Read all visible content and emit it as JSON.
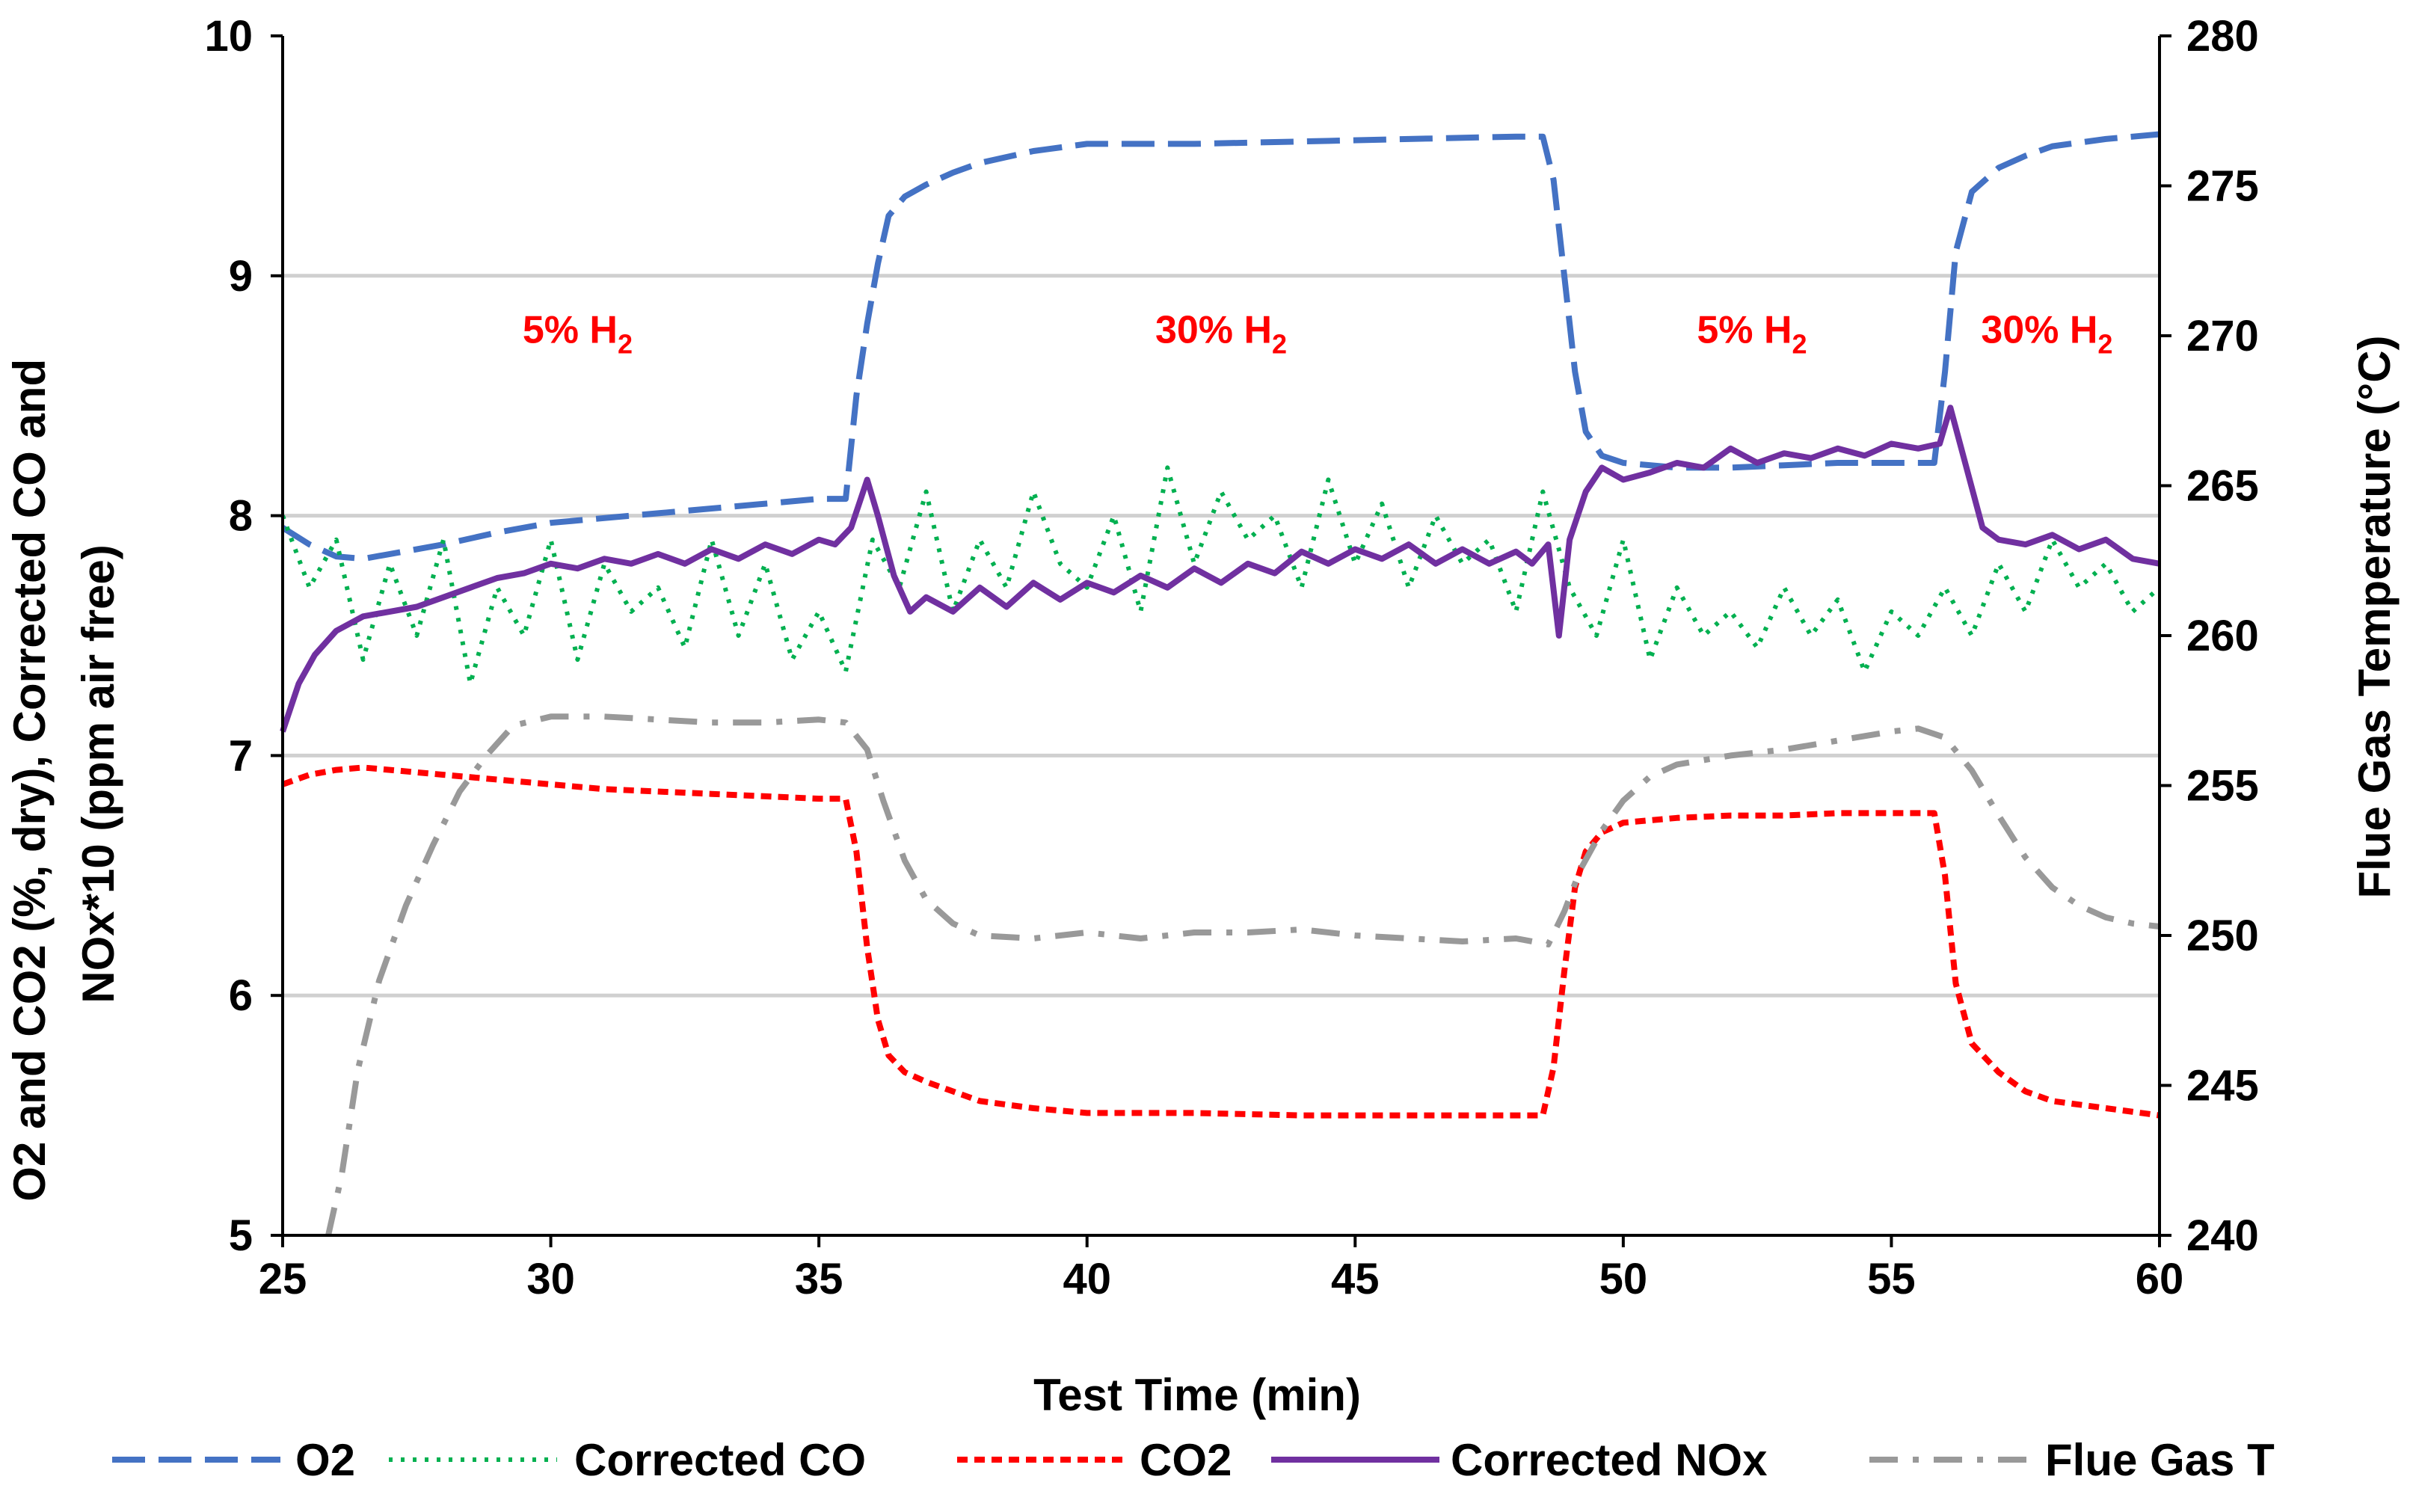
{
  "chart_data": {
    "type": "line",
    "xlabel": "Test Time (min)",
    "ylabel_lines": [
      "O2 and CO2 (%, dry), Corrected CO and",
      "NOx*10 (ppm air free)"
    ],
    "y2label": "Flue Gas Temperature (°C)",
    "xlim": [
      25,
      60
    ],
    "ylim": [
      5,
      10
    ],
    "y2lim": [
      240,
      280
    ],
    "x_ticks": [
      25,
      30,
      35,
      40,
      45,
      50,
      55,
      60
    ],
    "y_ticks": [
      5,
      6,
      7,
      8,
      9,
      10
    ],
    "y2_ticks": [
      240,
      245,
      250,
      255,
      260,
      265,
      270,
      275,
      280
    ],
    "grid": "horizontal",
    "legend_position": "bottom",
    "annotations": [
      {
        "text": "5% H",
        "sub": "2",
        "x": 30.5,
        "y": 8.72
      },
      {
        "text": "30% H",
        "sub": "2",
        "x": 42.5,
        "y": 8.72
      },
      {
        "text": "5% H",
        "sub": "2",
        "x": 52.4,
        "y": 8.72
      },
      {
        "text": "30% H",
        "sub": "2",
        "x": 57.9,
        "y": 8.72
      }
    ],
    "series": [
      {
        "name": "O2",
        "axis": "left",
        "color": "#4472c4",
        "dash": "dash",
        "x": [
          25,
          25.5,
          26,
          26.5,
          27,
          28,
          29,
          30,
          31,
          32,
          33,
          34,
          35,
          35.5,
          35.7,
          35.9,
          36.1,
          36.3,
          36.6,
          37,
          37.5,
          38,
          39,
          40,
          42,
          44,
          46,
          48,
          48.5,
          48.7,
          48.9,
          49.1,
          49.3,
          49.6,
          50,
          51,
          52,
          53,
          54,
          55,
          55.8,
          56,
          56.2,
          56.5,
          57,
          57.5,
          58,
          59,
          60
        ],
        "y": [
          7.95,
          7.88,
          7.83,
          7.82,
          7.84,
          7.88,
          7.93,
          7.97,
          7.99,
          8.01,
          8.03,
          8.05,
          8.07,
          8.07,
          8.5,
          8.8,
          9.05,
          9.25,
          9.33,
          9.38,
          9.43,
          9.47,
          9.52,
          9.55,
          9.55,
          9.56,
          9.57,
          9.58,
          9.58,
          9.4,
          9.0,
          8.6,
          8.35,
          8.25,
          8.22,
          8.2,
          8.2,
          8.21,
          8.22,
          8.22,
          8.22,
          8.6,
          9.1,
          9.35,
          9.45,
          9.5,
          9.54,
          9.57,
          9.59
        ]
      },
      {
        "name": "Corrected CO",
        "axis": "left",
        "color": "#00b050",
        "dash": "dot",
        "x": [
          25,
          25.5,
          26,
          26.5,
          27,
          27.5,
          28,
          28.5,
          29,
          29.5,
          30,
          30.5,
          31,
          31.5,
          32,
          32.5,
          33,
          33.5,
          34,
          34.5,
          35,
          35.5,
          36,
          36.5,
          37,
          37.5,
          38,
          38.5,
          39,
          39.5,
          40,
          40.5,
          41,
          41.5,
          42,
          42.5,
          43,
          43.5,
          44,
          44.5,
          45,
          45.5,
          46,
          46.5,
          47,
          47.5,
          48,
          48.5,
          49,
          49.5,
          50,
          50.5,
          51,
          51.5,
          52,
          52.5,
          53,
          53.5,
          54,
          54.5,
          55,
          55.5,
          56,
          56.5,
          57,
          57.5,
          58,
          58.5,
          59,
          59.5,
          60
        ],
        "y": [
          8.0,
          7.7,
          7.9,
          7.4,
          7.8,
          7.5,
          7.9,
          7.3,
          7.7,
          7.5,
          7.9,
          7.4,
          7.8,
          7.6,
          7.7,
          7.45,
          7.9,
          7.5,
          7.8,
          7.4,
          7.6,
          7.35,
          7.9,
          7.7,
          8.1,
          7.6,
          7.9,
          7.7,
          8.1,
          7.8,
          7.7,
          8.0,
          7.6,
          8.2,
          7.8,
          8.1,
          7.9,
          8.0,
          7.7,
          8.15,
          7.8,
          8.05,
          7.7,
          8.0,
          7.8,
          7.9,
          7.6,
          8.1,
          7.7,
          7.5,
          7.9,
          7.4,
          7.7,
          7.5,
          7.6,
          7.45,
          7.7,
          7.5,
          7.65,
          7.35,
          7.6,
          7.5,
          7.7,
          7.5,
          7.8,
          7.6,
          7.9,
          7.7,
          7.8,
          7.6,
          7.7
        ]
      },
      {
        "name": "CO2",
        "axis": "left",
        "color": "#ff0000",
        "dash": "shortdash",
        "x": [
          25,
          25.5,
          26,
          26.5,
          27,
          28,
          29,
          30,
          31,
          32,
          33,
          34,
          35,
          35.5,
          35.7,
          35.9,
          36.1,
          36.3,
          36.6,
          37,
          37.5,
          38,
          39,
          40,
          42,
          44,
          46,
          48,
          48.5,
          48.7,
          48.9,
          49.1,
          49.3,
          49.6,
          50,
          51,
          52,
          53,
          54,
          55,
          55.8,
          56,
          56.2,
          56.5,
          57,
          57.5,
          58,
          59,
          60
        ],
        "y": [
          6.88,
          6.92,
          6.94,
          6.95,
          6.94,
          6.92,
          6.9,
          6.88,
          6.86,
          6.85,
          6.84,
          6.83,
          6.82,
          6.82,
          6.6,
          6.2,
          5.9,
          5.75,
          5.68,
          5.64,
          5.6,
          5.56,
          5.53,
          5.51,
          5.51,
          5.5,
          5.5,
          5.5,
          5.5,
          5.7,
          6.1,
          6.45,
          6.6,
          6.68,
          6.72,
          6.74,
          6.75,
          6.75,
          6.76,
          6.76,
          6.76,
          6.5,
          6.05,
          5.8,
          5.68,
          5.6,
          5.56,
          5.53,
          5.5
        ]
      },
      {
        "name": "Corrected NOx",
        "axis": "left",
        "color": "#7030a0",
        "dash": "solid",
        "x": [
          25,
          25.3,
          25.6,
          26,
          26.5,
          27,
          27.5,
          28,
          28.5,
          29,
          29.5,
          30,
          30.5,
          31,
          31.5,
          32,
          32.5,
          33,
          33.5,
          34,
          34.5,
          35,
          35.3,
          35.6,
          35.9,
          36.1,
          36.4,
          36.7,
          37,
          37.5,
          38,
          38.5,
          39,
          39.5,
          40,
          40.5,
          41,
          41.5,
          42,
          42.5,
          43,
          43.5,
          44,
          44.5,
          45,
          45.5,
          46,
          46.5,
          47,
          47.5,
          48,
          48.3,
          48.6,
          48.8,
          49,
          49.3,
          49.6,
          50,
          50.5,
          51,
          51.5,
          52,
          52.5,
          53,
          53.5,
          54,
          54.5,
          55,
          55.5,
          55.9,
          56.1,
          56.4,
          56.7,
          57,
          57.5,
          58,
          58.5,
          59,
          59.5,
          60
        ],
        "y": [
          7.1,
          7.3,
          7.42,
          7.52,
          7.58,
          7.6,
          7.62,
          7.66,
          7.7,
          7.74,
          7.76,
          7.8,
          7.78,
          7.82,
          7.8,
          7.84,
          7.8,
          7.86,
          7.82,
          7.88,
          7.84,
          7.9,
          7.88,
          7.95,
          8.15,
          8.0,
          7.75,
          7.6,
          7.66,
          7.6,
          7.7,
          7.62,
          7.72,
          7.65,
          7.72,
          7.68,
          7.75,
          7.7,
          7.78,
          7.72,
          7.8,
          7.76,
          7.85,
          7.8,
          7.86,
          7.82,
          7.88,
          7.8,
          7.86,
          7.8,
          7.85,
          7.8,
          7.88,
          7.5,
          7.9,
          8.1,
          8.2,
          8.15,
          8.18,
          8.22,
          8.2,
          8.28,
          8.22,
          8.26,
          8.24,
          8.28,
          8.25,
          8.3,
          8.28,
          8.3,
          8.45,
          8.2,
          7.95,
          7.9,
          7.88,
          7.92,
          7.86,
          7.9,
          7.82,
          7.8
        ]
      },
      {
        "name": "Flue Gas T",
        "axis": "right",
        "color": "#999999",
        "dash": "dashdot",
        "x": [
          25.85,
          26.1,
          26.4,
          26.8,
          27.3,
          27.8,
          28.3,
          28.8,
          29.3,
          30,
          31,
          32,
          33,
          34,
          35,
          35.5,
          35.9,
          36.2,
          36.6,
          37,
          37.5,
          38,
          39,
          40,
          41,
          42,
          43,
          44,
          45,
          46,
          47,
          48,
          48.6,
          48.9,
          49.2,
          49.6,
          50,
          50.5,
          51,
          52,
          53,
          54,
          55,
          55.5,
          56,
          56.5,
          57,
          57.5,
          58,
          58.5,
          59,
          59.5,
          60
        ],
        "y": [
          240,
          242,
          245.5,
          248.5,
          251,
          253,
          254.8,
          256,
          257,
          257.3,
          257.3,
          257.2,
          257.1,
          257.1,
          257.2,
          257.1,
          256.2,
          254.5,
          252.5,
          251.2,
          250.4,
          250,
          249.9,
          250.1,
          249.9,
          250.1,
          250.1,
          250.2,
          250,
          249.9,
          249.8,
          249.9,
          249.7,
          250.8,
          252.2,
          253.5,
          254.5,
          255.3,
          255.7,
          256,
          256.2,
          256.5,
          256.8,
          256.9,
          256.6,
          255.5,
          254,
          252.6,
          251.6,
          251,
          250.6,
          250.4,
          250.3
        ]
      }
    ]
  }
}
